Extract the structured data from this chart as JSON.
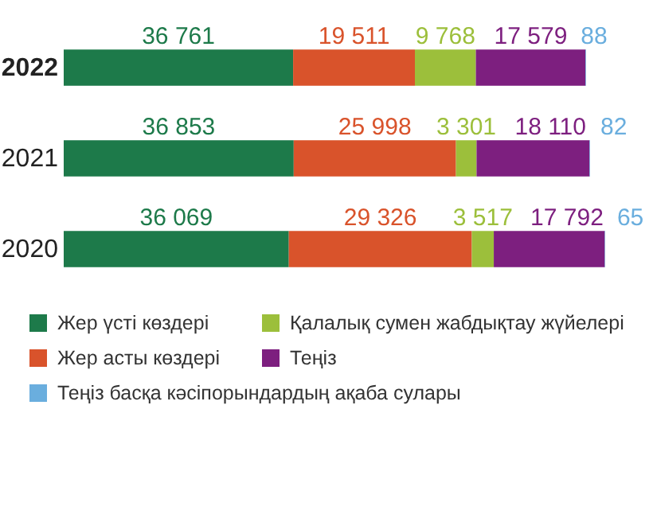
{
  "chart_data": {
    "type": "bar",
    "orientation": "horizontal",
    "stacked": true,
    "categories": [
      "2022",
      "2021",
      "2020"
    ],
    "legend": "bottom",
    "series": [
      {
        "name": "Жер үсті көздері",
        "color": "#1d7a4a",
        "values": [
          36761,
          36853,
          36069
        ],
        "value_labels": [
          "36 761",
          "36 853",
          "36 069"
        ]
      },
      {
        "name": "Жер асты көздері",
        "color": "#d9532b",
        "values": [
          19511,
          25998,
          29326
        ],
        "value_labels": [
          "19 511",
          "25 998",
          "29 326"
        ]
      },
      {
        "name": "Қалалық сумен жабдықтау жүйелері",
        "color": "#9cbf3b",
        "values": [
          9768,
          3301,
          3517
        ],
        "value_labels": [
          "9 768",
          "3 301",
          "3 517"
        ]
      },
      {
        "name": "Теңіз",
        "color": "#7d1f7f",
        "values": [
          17579,
          18110,
          17792
        ],
        "value_labels": [
          "17 579",
          "18 110",
          "17 792"
        ]
      },
      {
        "name": "Теңіз басқа кәсіпорындардың ақаба сулары",
        "color": "#6aaede",
        "values": [
          88,
          82,
          65
        ],
        "value_labels": [
          "88",
          "82",
          "65"
        ]
      }
    ]
  }
}
